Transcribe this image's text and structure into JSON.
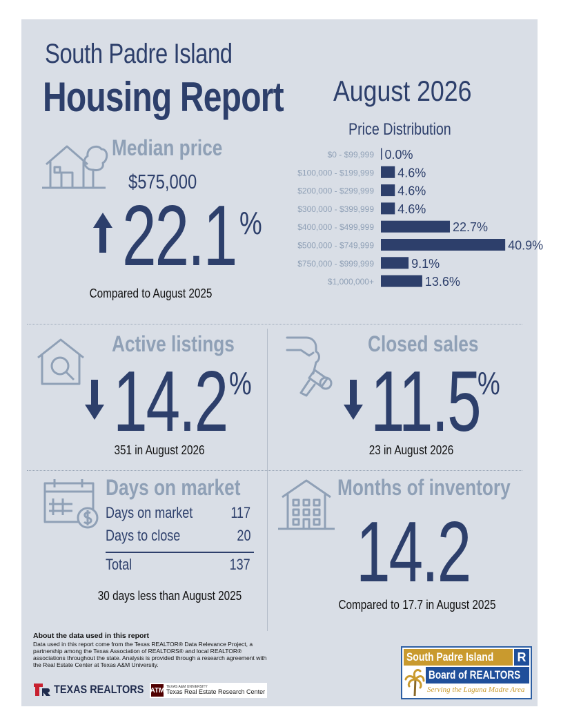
{
  "header": {
    "location": "South Padre Island",
    "report_title": "Housing Report",
    "period": "August 2026"
  },
  "median_price": {
    "heading": "Median price",
    "value": "$575,000",
    "change": "22.1",
    "percent_sign": "%",
    "direction": "up",
    "caption": "Compared to August 2025"
  },
  "chart_data": {
    "type": "bar",
    "title": "Price Distribution",
    "orientation": "horizontal",
    "categories": [
      "$0 - $99,999",
      "$100,000 - $199,999",
      "$200,000 - $299,999",
      "$300,000 - $399,999",
      "$400,000 - $499,999",
      "$500,000 - $749,999",
      "$750,000 - $999,999",
      "$1,000,000+"
    ],
    "values": [
      0.0,
      4.6,
      4.6,
      4.6,
      22.7,
      40.9,
      9.1,
      13.6
    ],
    "value_labels": [
      "0.0%",
      "4.6%",
      "4.6%",
      "4.6%",
      "22.7%",
      "40.9%",
      "9.1%",
      "13.6%"
    ],
    "bar_color": "#2d3f6b"
  },
  "active_listings": {
    "heading": "Active listings",
    "change": "14.2",
    "percent_sign": "%",
    "direction": "down",
    "caption": "351 in August 2026"
  },
  "closed_sales": {
    "heading": "Closed sales",
    "change": "11.5",
    "percent_sign": "%",
    "direction": "down",
    "caption": "23 in August 2026"
  },
  "days_on_market": {
    "heading": "Days on market",
    "rows": [
      {
        "label": "Days on market",
        "value": "117"
      },
      {
        "label": "Days to close",
        "value": "20"
      }
    ],
    "total_label": "Total",
    "total_value": "137",
    "caption": "30 days less than August 2025"
  },
  "months_inventory": {
    "heading": "Months of inventory",
    "value": "14.2",
    "caption": "Compared to 17.7 in August 2025"
  },
  "footer": {
    "about_heading": "About the data used in this report",
    "about_text": "Data used in this report come from the Texas REALTOR® Data Relevance Project, a partnership among the Texas Association of REALTORS® and local REALTOR® associations throughout the state. Analysis is provided through a research agreement with the Real Estate Center at Texas A&M University.",
    "texas_realtors": "TEXAS REALTORS",
    "tamu_small": "TEXAS A&M UNIVERSITY",
    "tamu_name": "Texas Real Estate Research Center",
    "board_line1": "South Padre Island",
    "board_line2": "Board of REALTORS",
    "board_tagline": "Serving the Laguna Madre Area"
  },
  "colors": {
    "navy": "#2d3f6b",
    "slate": "#8fa0b6",
    "panel": "#d9dee6",
    "gold": "#c99a2e"
  }
}
